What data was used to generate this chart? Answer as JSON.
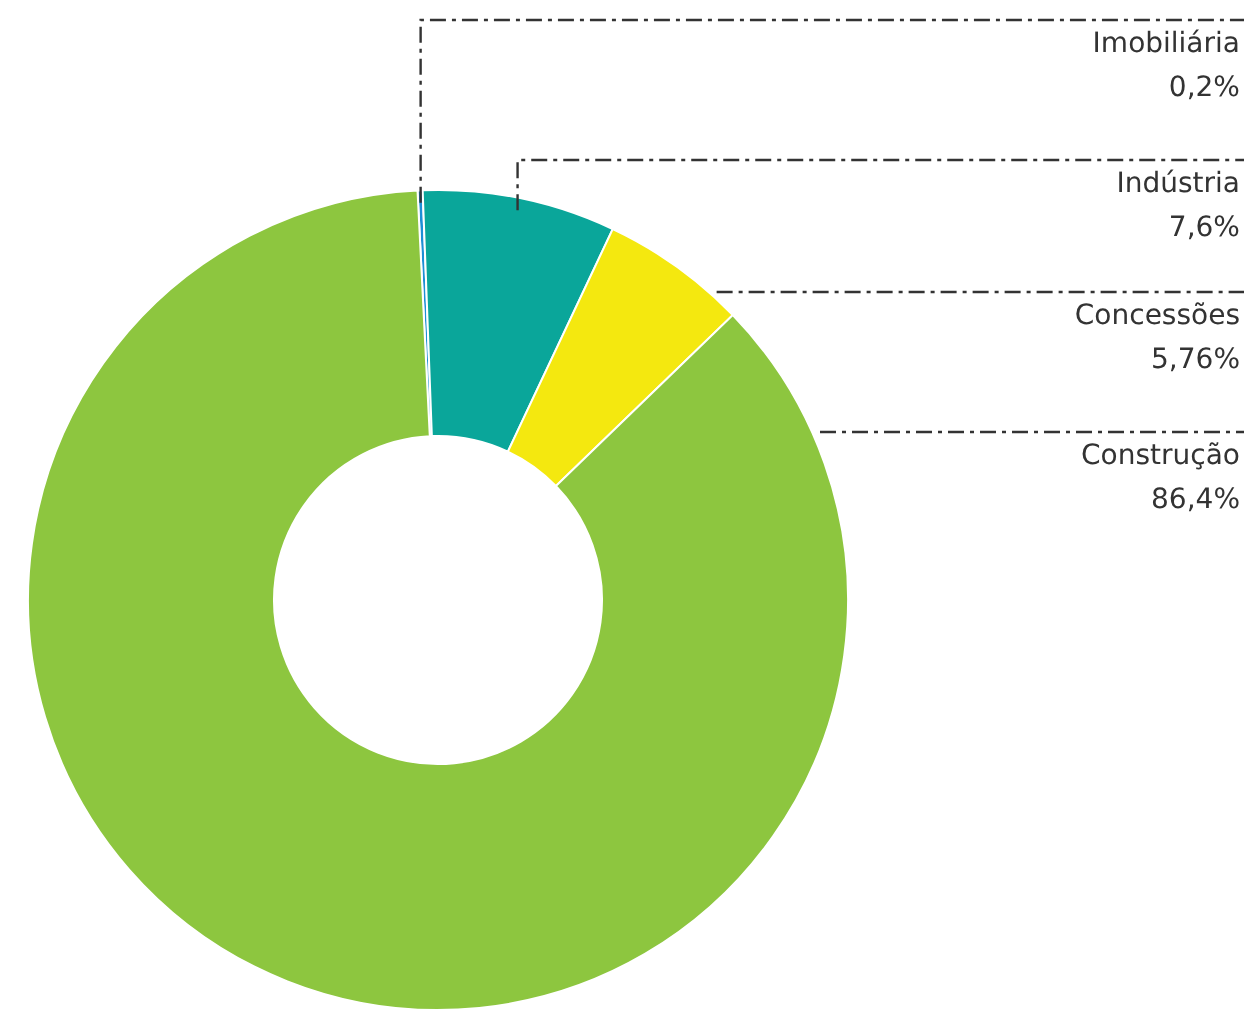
{
  "chart_data": {
    "type": "donut",
    "categories": [
      "Imobiliária",
      "Indústria",
      "Concessões",
      "Construção"
    ],
    "values": [
      0.2,
      7.6,
      5.76,
      86.4
    ],
    "colors": [
      "#1e8fd5",
      "#0aa69a",
      "#f4e80f",
      "#8dc63f"
    ],
    "value_labels": [
      "0,2%",
      "7,6%",
      "5,76%",
      "86,4%"
    ]
  }
}
